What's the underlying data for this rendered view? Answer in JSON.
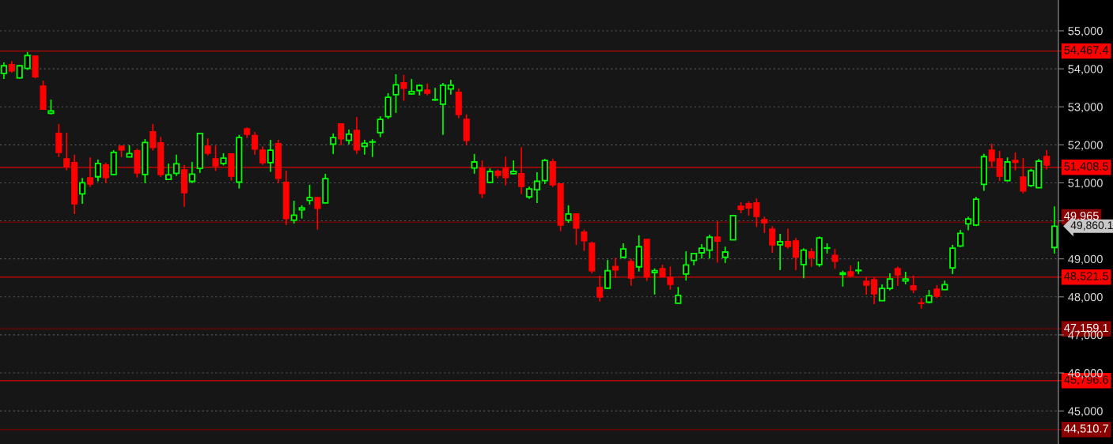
{
  "chart_data": {
    "type": "candlestick",
    "categories": [
      null,
      null,
      null,
      null,
      null,
      null,
      null,
      null,
      null,
      null,
      null,
      null,
      null,
      null,
      null,
      null,
      null,
      null,
      null,
      null,
      null,
      null,
      null,
      null,
      null,
      null,
      null,
      null,
      null,
      null,
      null,
      null,
      null,
      null,
      null,
      null,
      null,
      null,
      null,
      null,
      null,
      null,
      null,
      null,
      null,
      null,
      null,
      null,
      null,
      null,
      null,
      null,
      null,
      null,
      null,
      null,
      null,
      null,
      null,
      null,
      null,
      null,
      null,
      null,
      null,
      null,
      null,
      null,
      null,
      null,
      null,
      null,
      null,
      null,
      null,
      null,
      null,
      null,
      null,
      null,
      null,
      null,
      null,
      null,
      null,
      null,
      null,
      null,
      null,
      null,
      null,
      null,
      null,
      null,
      null,
      null,
      null,
      null,
      null,
      null,
      null,
      null,
      null,
      null,
      null,
      null,
      null,
      null,
      null,
      null,
      null,
      null,
      null,
      null,
      null,
      null,
      null,
      null,
      null,
      null,
      null,
      null,
      null,
      null,
      null,
      null,
      null,
      null,
      null,
      null,
      null,
      null,
      null,
      null,
      null
    ],
    "ohlc": [
      [
        53880,
        54170,
        53730,
        54080
      ],
      [
        54110,
        54200,
        53900,
        53950
      ],
      [
        53760,
        54100,
        53740,
        54080
      ],
      [
        54010,
        54440,
        53970,
        54350
      ],
      [
        54330,
        54350,
        53750,
        53790
      ],
      [
        53540,
        53690,
        52920,
        52940
      ],
      [
        52830,
        53190,
        52800,
        52890
      ],
      [
        52300,
        52550,
        51680,
        51800
      ],
      [
        51630,
        52320,
        51330,
        51430
      ],
      [
        51530,
        51740,
        50180,
        50450
      ],
      [
        50710,
        51130,
        50450,
        51000
      ],
      [
        51130,
        51670,
        50890,
        50970
      ],
      [
        51160,
        51610,
        51040,
        51510
      ],
      [
        51470,
        51530,
        50990,
        51140
      ],
      [
        51220,
        51860,
        51200,
        51800
      ],
      [
        51960,
        51970,
        51680,
        51870
      ],
      [
        51680,
        51990,
        51670,
        51770
      ],
      [
        51840,
        51900,
        51140,
        51260
      ],
      [
        51220,
        52150,
        50990,
        52060
      ],
      [
        52340,
        52550,
        51850,
        51930
      ],
      [
        52050,
        52210,
        51160,
        51220
      ],
      [
        51090,
        51510,
        51080,
        51210
      ],
      [
        51250,
        51740,
        51180,
        51500
      ],
      [
        51340,
        51470,
        50370,
        50740
      ],
      [
        51040,
        51550,
        50990,
        51230
      ],
      [
        51380,
        52320,
        51260,
        52300
      ],
      [
        51960,
        52170,
        51720,
        51780
      ],
      [
        51630,
        51980,
        51310,
        51450
      ],
      [
        51510,
        51780,
        51460,
        51650
      ],
      [
        51760,
        51770,
        51060,
        51180
      ],
      [
        51020,
        52260,
        50850,
        52190
      ],
      [
        52420,
        52460,
        52180,
        52280
      ],
      [
        52240,
        52340,
        51740,
        51890
      ],
      [
        51860,
        51960,
        51470,
        51530
      ],
      [
        51530,
        52130,
        51290,
        51860
      ],
      [
        52030,
        52130,
        50990,
        51120
      ],
      [
        51010,
        51320,
        49890,
        50060
      ],
      [
        50020,
        50530,
        49930,
        50150
      ],
      [
        50290,
        50410,
        50060,
        50340
      ],
      [
        50540,
        50950,
        50430,
        50610
      ],
      [
        50610,
        50620,
        49770,
        50330
      ],
      [
        50470,
        51240,
        50460,
        51110
      ],
      [
        52020,
        52300,
        51760,
        52190
      ],
      [
        52550,
        52560,
        51990,
        52160
      ],
      [
        52120,
        52400,
        52010,
        52280
      ],
      [
        52380,
        52730,
        51760,
        51870
      ],
      [
        51960,
        52130,
        51740,
        52040
      ],
      [
        52070,
        52150,
        51680,
        52080
      ],
      [
        52320,
        52750,
        52200,
        52670
      ],
      [
        52740,
        53360,
        52680,
        53250
      ],
      [
        53320,
        53860,
        52840,
        53580
      ],
      [
        53630,
        53840,
        53160,
        53490
      ],
      [
        53340,
        53730,
        53320,
        53400
      ],
      [
        53430,
        53590,
        53300,
        53560
      ],
      [
        53440,
        53610,
        53300,
        53360
      ],
      [
        53180,
        53500,
        53160,
        53190
      ],
      [
        53070,
        53630,
        52260,
        53570
      ],
      [
        53470,
        53710,
        53320,
        53570
      ],
      [
        53380,
        53480,
        52700,
        52800
      ],
      [
        52670,
        52800,
        51990,
        52120
      ],
      [
        51390,
        51760,
        51240,
        51550
      ],
      [
        51380,
        51590,
        50600,
        50720
      ],
      [
        51010,
        51380,
        50990,
        51300
      ],
      [
        51300,
        51350,
        51120,
        51200
      ],
      [
        51380,
        51690,
        50930,
        51140
      ],
      [
        51240,
        51590,
        51220,
        51300
      ],
      [
        51240,
        51940,
        50700,
        50910
      ],
      [
        50630,
        50900,
        50580,
        50840
      ],
      [
        50820,
        51280,
        50470,
        51040
      ],
      [
        51060,
        51630,
        50970,
        51590
      ],
      [
        51550,
        51630,
        50890,
        50950
      ],
      [
        50970,
        50980,
        49730,
        49890
      ],
      [
        50020,
        50410,
        49950,
        50180
      ],
      [
        50180,
        50190,
        49370,
        49810
      ],
      [
        49700,
        49770,
        49210,
        49480
      ],
      [
        49410,
        49450,
        48620,
        48690
      ],
      [
        48240,
        48560,
        47880,
        48000
      ],
      [
        48230,
        48970,
        48210,
        48690
      ],
      [
        48800,
        49030,
        48500,
        48710
      ],
      [
        49040,
        49410,
        49020,
        49260
      ],
      [
        48930,
        49010,
        48290,
        48500
      ],
      [
        48790,
        49620,
        48670,
        49320
      ],
      [
        49510,
        49520,
        48420,
        48530
      ],
      [
        48640,
        48750,
        48060,
        48690
      ],
      [
        48740,
        48850,
        48520,
        48530
      ],
      [
        48510,
        48800,
        48190,
        48330
      ],
      [
        47830,
        48260,
        47820,
        48040
      ],
      [
        48600,
        49200,
        48430,
        48840
      ],
      [
        48960,
        49160,
        48830,
        49140
      ],
      [
        49160,
        49390,
        49010,
        49280
      ],
      [
        49230,
        49640,
        49010,
        49570
      ],
      [
        49570,
        49980,
        48900,
        49470
      ],
      [
        49040,
        49320,
        48890,
        49180
      ],
      [
        49500,
        50160,
        49490,
        50140
      ],
      [
        50380,
        50490,
        50200,
        50300
      ],
      [
        50450,
        50510,
        50140,
        50340
      ],
      [
        50470,
        50590,
        49840,
        50120
      ],
      [
        50030,
        50110,
        49680,
        49950
      ],
      [
        49780,
        49860,
        49160,
        49370
      ],
      [
        49370,
        49660,
        48700,
        49450
      ],
      [
        49450,
        49800,
        49270,
        49330
      ],
      [
        49470,
        49550,
        48700,
        49050
      ],
      [
        48850,
        49280,
        48490,
        49230
      ],
      [
        49180,
        49280,
        48790,
        49040
      ],
      [
        48850,
        49590,
        48790,
        49550
      ],
      [
        49280,
        49410,
        49140,
        49290
      ],
      [
        49090,
        49260,
        48740,
        48940
      ],
      [
        48590,
        48690,
        48270,
        48630
      ],
      [
        48660,
        48830,
        48520,
        48560
      ],
      [
        48690,
        48930,
        48600,
        48700
      ],
      [
        48410,
        48530,
        48060,
        48310
      ],
      [
        48450,
        48520,
        47810,
        48080
      ],
      [
        47900,
        48330,
        47890,
        48220
      ],
      [
        48220,
        48620,
        48170,
        48470
      ],
      [
        48740,
        48800,
        48290,
        48580
      ],
      [
        48420,
        48660,
        48330,
        48470
      ],
      [
        48290,
        48560,
        48100,
        48190
      ],
      [
        47840,
        47970,
        47690,
        47830
      ],
      [
        47860,
        48180,
        47830,
        48030
      ],
      [
        48200,
        48310,
        47970,
        48020
      ],
      [
        48190,
        48430,
        48180,
        48320
      ],
      [
        48760,
        49370,
        48600,
        49280
      ],
      [
        49340,
        49760,
        49310,
        49670
      ],
      [
        49920,
        50110,
        49750,
        50050
      ],
      [
        49890,
        50630,
        49860,
        50570
      ],
      [
        50960,
        51760,
        50790,
        51690
      ],
      [
        51860,
        52030,
        51410,
        51580
      ],
      [
        51630,
        51840,
        51050,
        51180
      ],
      [
        51060,
        51670,
        51040,
        51550
      ],
      [
        51590,
        51800,
        51330,
        51540
      ],
      [
        51150,
        51650,
        50720,
        50790
      ],
      [
        50930,
        51370,
        50890,
        51320
      ],
      [
        50870,
        51630,
        50860,
        51570
      ],
      [
        51690,
        51860,
        51350,
        51470
      ],
      [
        49300,
        50380,
        49140,
        49860
      ]
    ],
    "ylim": [
      44130,
      55810
    ],
    "yticks": [
      {
        "value": 45000,
        "label": "45,000"
      },
      {
        "value": 46000,
        "label": "46,000"
      },
      {
        "value": 47000,
        "label": "47,000"
      },
      {
        "value": 48000,
        "label": "48,000"
      },
      {
        "value": 49000,
        "label": "49,000"
      },
      {
        "value": 50000,
        "label": null
      },
      {
        "value": 51000,
        "label": "51,000"
      },
      {
        "value": 52000,
        "label": "52,000"
      },
      {
        "value": 53000,
        "label": "53,000"
      },
      {
        "value": 54000,
        "label": "54,000"
      },
      {
        "value": 55000,
        "label": "55,000"
      }
    ],
    "ref_lines": [
      {
        "axis": "y",
        "value": 54467.4,
        "label": "54,467.4",
        "color": "#ff0000"
      },
      {
        "axis": "y",
        "value": 51408.5,
        "label": "51,408.5",
        "color": "#ff0000"
      },
      {
        "axis": "y",
        "value": 49965,
        "label": "49,965",
        "color": "#8b0000"
      },
      {
        "axis": "y",
        "value": 48521.5,
        "label": "48,521.5",
        "color": "#ff0000"
      },
      {
        "axis": "y",
        "value": 47159.1,
        "label": "47,159.1",
        "color": "#8b0000"
      },
      {
        "axis": "y",
        "value": 45796.6,
        "label": "45,796.6",
        "color": "#ff0000"
      },
      {
        "axis": "y",
        "value": 44510.7,
        "label": "44,510.7",
        "color": "#8b0000"
      }
    ],
    "annotations": [
      "49,860.1"
    ],
    "grid": "y"
  }
}
